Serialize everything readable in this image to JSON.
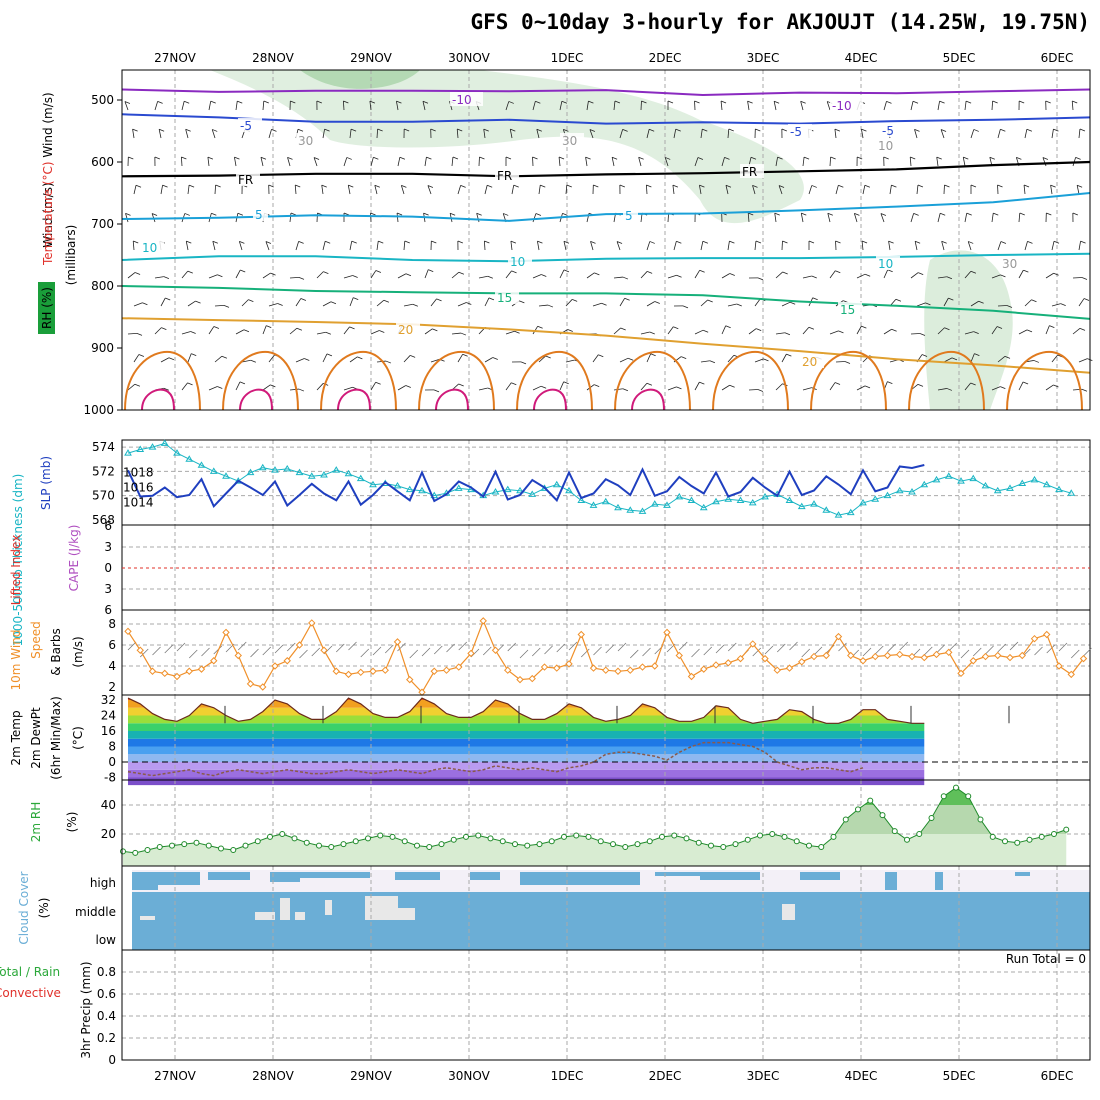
{
  "title": "GFS 0~10day 3-hourly for AKJOUJT (14.25W, 19.75N)",
  "colors": {
    "rh_green": "#1a9e3a",
    "temp_orange": "#e07a1e",
    "slp_blue": "#1f3fbf",
    "thick_cyan": "#19b5c4",
    "li_red": "#e0302a",
    "cape_purple": "#b050c0",
    "wind_orange": "#f0902a",
    "dew": "#8a5a4a",
    "rh2m_green": "#2ba83a",
    "cloud_blue": "#6baed6",
    "cloud_blank": "#f3f0f7",
    "precip_green": "#2ba83a"
  },
  "chart_data": [
    {
      "type": "contour",
      "name": "upper-air",
      "ylabel_parts": [
        "RH (%)",
        "Temperature (°C)",
        "Wind (m/s)"
      ],
      "ylabel2": "(millibars)",
      "x_dates": [
        "27NOV",
        "28NOV",
        "29NOV",
        "30NOV",
        "1DEC",
        "2DEC",
        "3DEC",
        "4DEC",
        "5DEC",
        "6DEC"
      ],
      "y_ticks": [
        500,
        600,
        700,
        800,
        900,
        1000
      ],
      "ylim": [
        455,
        1000
      ],
      "isotherms": [
        {
          "label": "-10",
          "levels_mb": [
            483,
            487,
            485,
            485,
            486,
            484,
            492,
            488,
            489,
            486,
            483
          ]
        },
        {
          "label": "-5",
          "levels_mb": [
            523,
            528,
            535,
            535,
            532,
            538,
            536,
            538,
            534,
            532,
            528
          ]
        },
        {
          "label": "FR",
          "levels_mb": [
            623,
            622,
            619,
            619,
            623,
            620,
            618,
            615,
            612,
            605,
            600
          ]
        },
        {
          "label": "5",
          "levels_mb": [
            692,
            690,
            686,
            688,
            695,
            684,
            683,
            678,
            672,
            665,
            650
          ]
        },
        {
          "label": "10",
          "levels_mb": [
            758,
            752,
            752,
            758,
            760,
            756,
            755,
            755,
            753,
            750,
            748
          ]
        },
        {
          "label": "15",
          "levels_mb": [
            800,
            803,
            808,
            810,
            812,
            812,
            815,
            825,
            832,
            840,
            853
          ]
        },
        {
          "label": "20",
          "levels_mb": [
            852,
            855,
            858,
            862,
            870,
            880,
            893,
            905,
            918,
            928,
            940
          ]
        }
      ],
      "contour_labels": [
        "-10",
        "-10",
        "-5",
        "-5",
        "-5",
        "FR",
        "FR",
        "FR",
        "5",
        "5",
        "10",
        "10",
        "10",
        "15",
        "15",
        "20",
        "20",
        "30",
        "30",
        "10",
        "30"
      ]
    },
    {
      "type": "line",
      "name": "slp-thickness",
      "ylabel_left": "1000-500mb Thickness (dm)",
      "ylabel_right": "SLP (mb)",
      "left_ticks": [
        568,
        570,
        572,
        574
      ],
      "right_ticks": [
        1014,
        1016,
        1018
      ],
      "series": [
        {
          "name": "SLP (mb)",
          "values": [
            1018.3,
            1014.8,
            1014.9,
            1016.0,
            1014.7,
            1015.0,
            1017.1,
            1013.5,
            1015.2,
            1016.9,
            1016.0,
            1015.0,
            1016.8,
            1013.6,
            1015.0,
            1016.5,
            1015.2,
            1014.3,
            1016.8,
            1013.7,
            1015.0,
            1016.7,
            1015.5,
            1014.3,
            1018.0,
            1014.2,
            1015.1,
            1016.8,
            1016.0,
            1014.8,
            1018.1,
            1014.4,
            1015.0,
            1017.0,
            1016.0,
            1014.3,
            1018.0,
            1014.6,
            1015.2,
            1017.1,
            1016.3,
            1015.0,
            1018.4,
            1014.9,
            1015.5,
            1017.4,
            1016.2,
            1015.2,
            1018.0,
            1014.8,
            1015.4,
            1017.3,
            1016.0,
            1014.9,
            1018.1,
            1015.0,
            1015.6,
            1017.5,
            1016.4,
            1015.1,
            1018.3,
            1015.5,
            1016.0,
            1018.8,
            1018.6,
            1019.0
          ]
        },
        {
          "name": "1000-500mb Thickness (dm)",
          "values": [
            573.5,
            573.8,
            574.0,
            574.3,
            573.5,
            573.0,
            572.5,
            572.0,
            571.6,
            571.2,
            571.9,
            572.3,
            572.1,
            572.2,
            571.9,
            571.6,
            571.7,
            572.1,
            571.8,
            571.4,
            570.9,
            571.0,
            570.8,
            570.5,
            570.4,
            570.0,
            570.2,
            570.6,
            570.5,
            570.0,
            570.3,
            570.5,
            570.4,
            570.1,
            570.6,
            570.9,
            570.4,
            569.6,
            569.2,
            569.5,
            569.0,
            568.8,
            568.7,
            569.3,
            569.2,
            569.9,
            569.6,
            569.0,
            569.5,
            569.7,
            569.6,
            569.4,
            569.9,
            570.1,
            569.6,
            569.1,
            569.3,
            568.8,
            568.4,
            568.6,
            569.4,
            569.7,
            570.0,
            570.4,
            570.3,
            570.9,
            571.3,
            571.6,
            571.2,
            571.4,
            570.8,
            570.4,
            570.6,
            571.0,
            571.3,
            570.9,
            570.5,
            570.2
          ]
        }
      ]
    },
    {
      "type": "line",
      "name": "lifted-index-cape",
      "ylabel_left": "Lifted Index",
      "ylabel_right": "CAPE (J/kg)",
      "ticks": [
        6,
        3,
        0,
        -3,
        -6
      ],
      "reference_line": 0
    },
    {
      "type": "line",
      "name": "10m-wind",
      "ylabel": [
        "10m Wind Speed",
        "& Barbs",
        "(m/s)"
      ],
      "ylabel_parts": [
        "10m Wind",
        "Speed",
        "& Barbs",
        "(m/s)"
      ],
      "ticks": [
        2,
        4,
        6,
        8
      ],
      "series": [
        {
          "name": "10m Wind Speed",
          "values": [
            7.3,
            5.5,
            3.5,
            3.3,
            3.0,
            3.5,
            3.7,
            4.5,
            7.2,
            5.0,
            2.3,
            2.0,
            4.0,
            4.5,
            6.0,
            8.1,
            5.5,
            3.5,
            3.2,
            3.4,
            3.5,
            3.6,
            6.3,
            2.7,
            1.5,
            3.5,
            3.6,
            3.9,
            5.2,
            8.3,
            5.5,
            3.6,
            2.7,
            2.8,
            3.9,
            3.8,
            4.2,
            7.0,
            3.8,
            3.6,
            3.5,
            3.6,
            3.9,
            4.0,
            7.2,
            5.0,
            3.0,
            3.7,
            4.1,
            4.3,
            4.7,
            6.1,
            4.7,
            3.6,
            3.8,
            4.4,
            4.9,
            5.0,
            6.8,
            5.0,
            4.5,
            4.9,
            5.0,
            5.1,
            4.9,
            4.8,
            5.1,
            5.3,
            3.3,
            4.5,
            4.9,
            5.0,
            4.8,
            5.0,
            6.6,
            7.0,
            4.0,
            3.2,
            4.7,
            5.2,
            5.5
          ]
        }
      ]
    },
    {
      "type": "area",
      "name": "2m-temp",
      "ylabel": [
        "2m Temp",
        "2m DewPt",
        "(6hr Min/Max)",
        "(°C)"
      ],
      "ticks": [
        -8,
        0,
        8,
        16,
        24,
        32
      ],
      "series": [
        {
          "name": "2m Temp",
          "values": [
            33,
            30,
            25,
            22,
            21,
            24,
            30,
            28,
            24,
            21,
            22,
            26,
            32,
            30,
            25,
            22,
            22,
            26,
            33,
            30,
            25,
            23,
            23,
            26,
            33,
            30,
            25,
            23,
            23,
            26,
            32,
            30,
            25,
            22,
            22,
            25,
            30,
            28,
            23,
            21,
            22,
            24,
            30,
            28,
            23,
            21,
            21,
            23,
            29,
            28,
            22,
            20,
            21,
            22,
            27,
            26,
            22,
            20,
            20,
            22,
            27,
            27,
            22,
            21,
            20,
            20
          ]
        },
        {
          "name": "2m DewPt",
          "values": [
            -5,
            -6,
            -7,
            -6,
            -5,
            -4,
            -6,
            -7,
            -5,
            -4,
            -5,
            -6,
            -5,
            -4,
            -5,
            -6,
            -6,
            -5,
            -4,
            -5,
            -6,
            -5,
            -4,
            -5,
            -6,
            -4,
            -3,
            -4,
            -5,
            -4,
            -2,
            -3,
            -4,
            -3,
            -4,
            -5,
            -3,
            -2,
            0,
            4,
            5,
            5,
            4,
            3,
            1,
            5,
            8,
            10,
            10,
            10,
            9,
            8,
            5,
            0,
            -2,
            -4,
            -3,
            -3,
            -4,
            -5,
            -3
          ]
        }
      ]
    },
    {
      "type": "area",
      "name": "2m-rh",
      "ylabel": [
        "2m RH",
        "(%)"
      ],
      "ticks": [
        20,
        40
      ],
      "series": [
        {
          "name": "2m RH",
          "values": [
            8,
            7,
            9,
            11,
            12,
            13,
            14,
            12,
            10,
            9,
            12,
            15,
            18,
            20,
            17,
            14,
            12,
            11,
            13,
            15,
            17,
            19,
            18,
            15,
            12,
            11,
            13,
            16,
            18,
            19,
            17,
            15,
            13,
            12,
            13,
            15,
            18,
            19,
            18,
            15,
            13,
            11,
            13,
            15,
            18,
            19,
            17,
            14,
            12,
            11,
            13,
            16,
            19,
            20,
            18,
            15,
            12,
            11,
            18,
            30,
            37,
            43,
            33,
            22,
            16,
            20,
            31,
            46,
            52,
            46,
            30,
            18,
            15,
            14,
            16,
            18,
            20,
            23
          ]
        }
      ]
    },
    {
      "type": "heatmap",
      "name": "cloud-cover",
      "ylabel": [
        "Cloud Cover",
        "(%)"
      ],
      "rows": [
        "high",
        "middle",
        "low"
      ]
    },
    {
      "type": "bar",
      "name": "precip",
      "ylabel_parts": [
        "Total / Rain",
        "Convective",
        "3hr Precip (mm)"
      ],
      "ticks": [
        0,
        0.2,
        0.4,
        0.6,
        0.8
      ],
      "run_total": "Run Total = 0",
      "values": []
    }
  ]
}
